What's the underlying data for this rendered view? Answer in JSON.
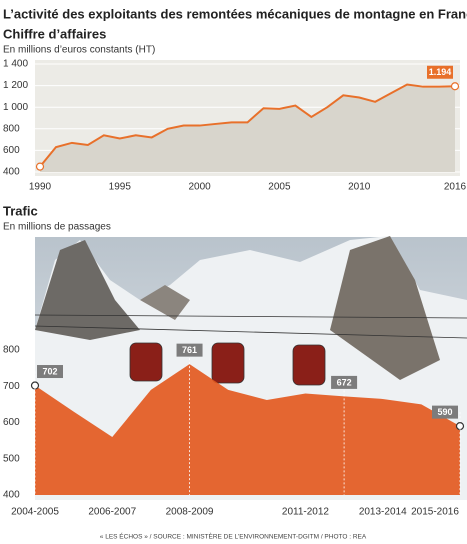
{
  "title": "L’activité des exploitants des remontées mécaniques de montagne en France",
  "source": "« LES ÉCHOS » / SOURCE : MINISTÈRE DE L’ENVIRONNEMENT-DGITM / PHOTO : REA",
  "chart_data": [
    {
      "type": "line",
      "title": "Chiffre d’affaires",
      "subtitle": "En millions d’euros constants (HT)",
      "x": [
        1990,
        1991,
        1992,
        1993,
        1994,
        1995,
        1996,
        1997,
        1998,
        1999,
        2000,
        2001,
        2002,
        2003,
        2004,
        2005,
        2006,
        2007,
        2008,
        2009,
        2010,
        2011,
        2012,
        2013,
        2014,
        2015,
        2016
      ],
      "values": [
        450,
        630,
        670,
        650,
        740,
        710,
        740,
        720,
        800,
        830,
        830,
        845,
        860,
        860,
        990,
        985,
        1015,
        910,
        1000,
        1110,
        1090,
        1050,
        1130,
        1210,
        1190,
        1190,
        1194
      ],
      "value_labels": [
        null,
        null,
        null,
        null,
        null,
        null,
        null,
        null,
        null,
        null,
        null,
        null,
        null,
        null,
        null,
        null,
        null,
        null,
        null,
        null,
        null,
        null,
        null,
        null,
        null,
        null,
        "1.194"
      ],
      "color": "#e8702a",
      "fill": "#d8d5cc",
      "xlim": [
        1990,
        2016
      ],
      "xticks": [
        1990,
        1995,
        2000,
        2005,
        2010,
        2016
      ],
      "ylim": [
        400,
        1400
      ],
      "yticks": [
        400,
        600,
        800,
        {
          "value": 1000,
          "label": "1 000"
        },
        {
          "value": 1200,
          "label": "1 200"
        },
        {
          "value": 1400,
          "label": "1 400"
        }
      ],
      "grid": true
    },
    {
      "type": "area",
      "title": "Trafic",
      "subtitle": "En millions de passages",
      "categories": [
        "2004-2005",
        null,
        "2006-2007",
        null,
        "2008-2009",
        null,
        null,
        "2011-2012",
        null,
        "2013-2014",
        null,
        "2015-2016"
      ],
      "values": [
        702,
        630,
        560,
        690,
        761,
        690,
        662,
        680,
        672,
        665,
        650,
        590
      ],
      "value_labels": [
        "702",
        null,
        null,
        null,
        "761",
        null,
        null,
        null,
        "672",
        null,
        null,
        "590"
      ],
      "color": "#e2571c",
      "ylim": [
        400,
        800
      ],
      "yticks": [
        400,
        500,
        600,
        700,
        800
      ],
      "grid": false
    }
  ]
}
